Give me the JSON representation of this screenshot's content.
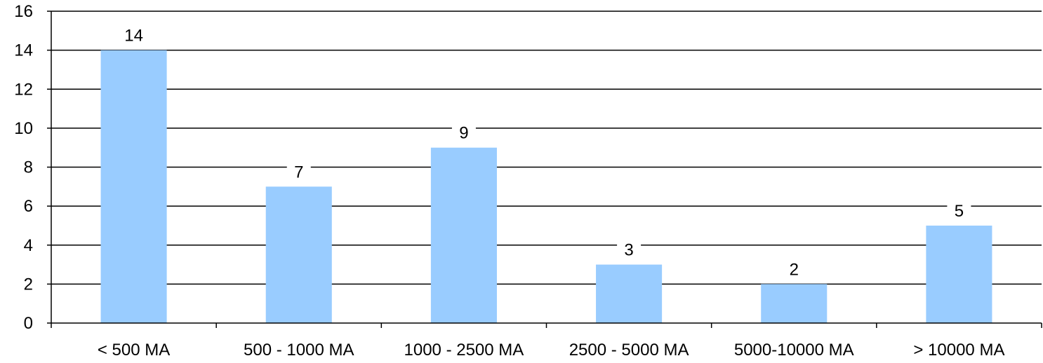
{
  "chart_data": {
    "type": "bar",
    "categories": [
      "< 500 MA",
      "500 - 1000 MA",
      "1000 - 2500 MA",
      "2500 - 5000 MA",
      "5000-10000 MA",
      "> 10000 MA"
    ],
    "values": [
      14,
      7,
      9,
      3,
      2,
      5
    ],
    "data_labels": [
      "14",
      "7",
      "9",
      "3",
      "2",
      "5"
    ],
    "title": "",
    "xlabel": "",
    "ylabel": "",
    "ylim": [
      0,
      16
    ],
    "y_ticks": [
      0,
      2,
      4,
      6,
      8,
      10,
      12,
      14,
      16
    ],
    "grid": true,
    "legend": "none",
    "colors": {
      "bar": "#99ccff",
      "grid": "#000000",
      "axis": "#000000",
      "label_bg": "#ffffff"
    }
  }
}
